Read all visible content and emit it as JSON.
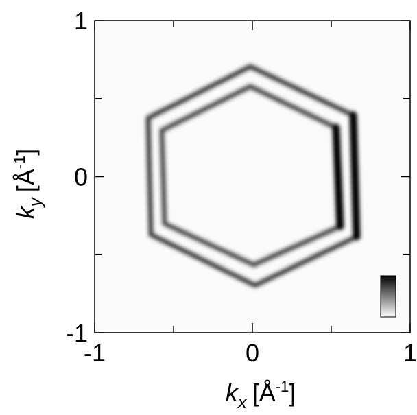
{
  "chart_data": {
    "type": "image",
    "xlabel": {
      "symbol": "k",
      "subscript": "x",
      "unit": "[Å",
      "exponent": "-1",
      "close": "]"
    },
    "ylabel": {
      "symbol": "k",
      "subscript": "y",
      "unit": "[Å",
      "exponent": "-1",
      "close": "]"
    },
    "xlim": [
      -1,
      1
    ],
    "ylim": [
      -1,
      1
    ],
    "xticks": [
      -1,
      0,
      1
    ],
    "yticks": [
      -1,
      0,
      1
    ],
    "xminorticks": [
      -0.5,
      0.5
    ],
    "yminorticks": [
      -0.5,
      0.5
    ]
  }
}
